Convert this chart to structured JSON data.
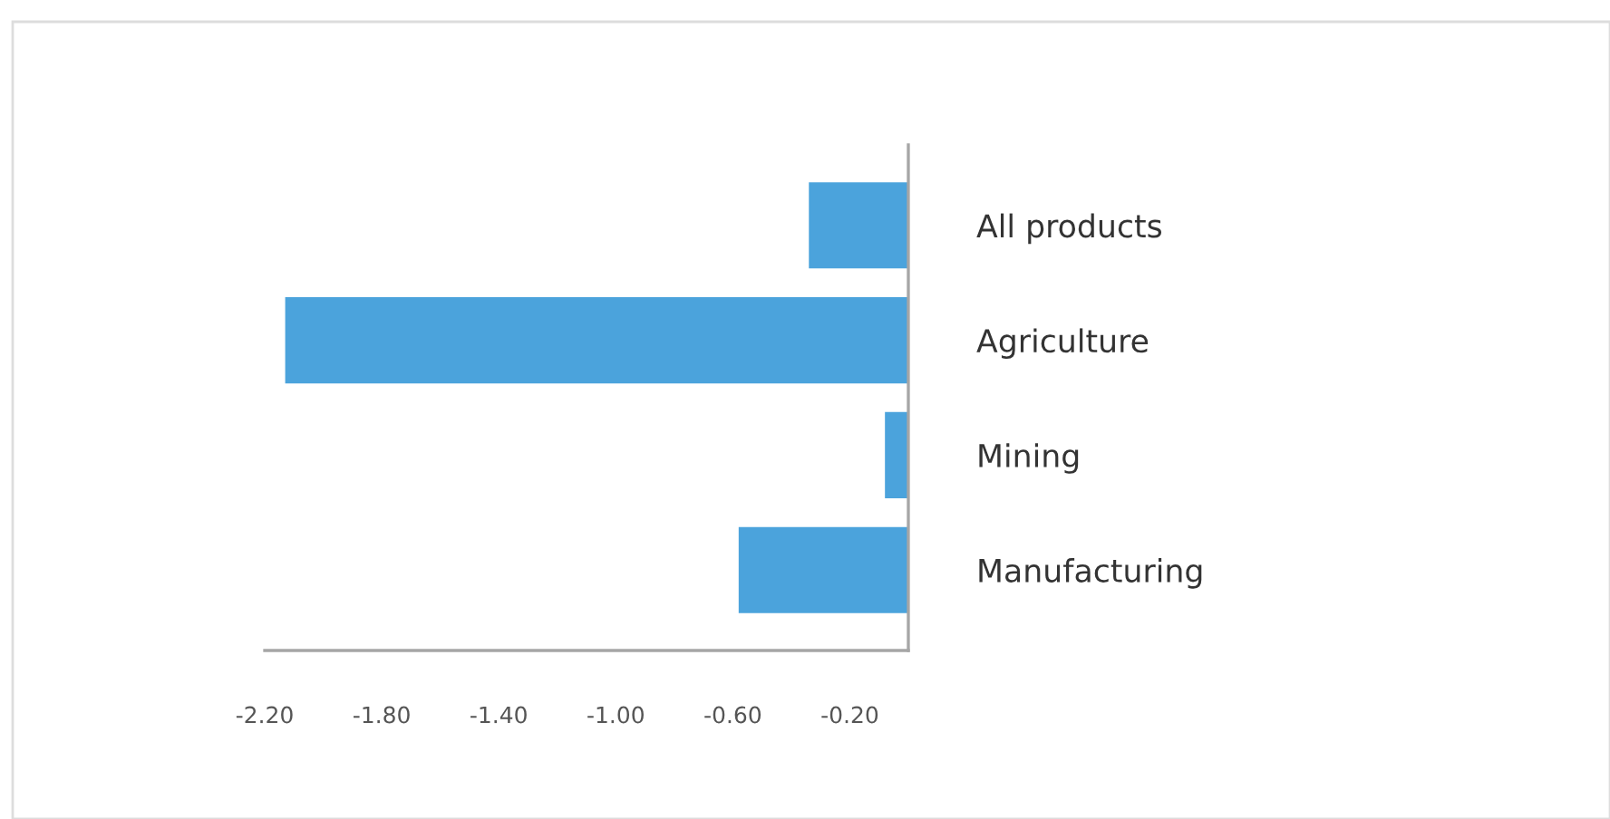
{
  "chart_data": {
    "type": "bar",
    "orientation": "horizontal",
    "categories": [
      "All products",
      "Agriculture",
      "Mining",
      "Manufacturing"
    ],
    "values": [
      -0.34,
      -2.13,
      -0.08,
      -0.58
    ],
    "color": "#4ba3dc",
    "xlim": [
      -2.2,
      0
    ],
    "xticks": [
      {
        "value": -2.2,
        "label": "-2.20"
      },
      {
        "value": -1.8,
        "label": "-1.80"
      },
      {
        "value": -1.4,
        "label": "-1.40"
      },
      {
        "value": -1.0,
        "label": "-1.00"
      },
      {
        "value": -0.6,
        "label": "-0.60"
      },
      {
        "value": -0.2,
        "label": "-0.20"
      }
    ],
    "grid": false,
    "legend": false
  }
}
